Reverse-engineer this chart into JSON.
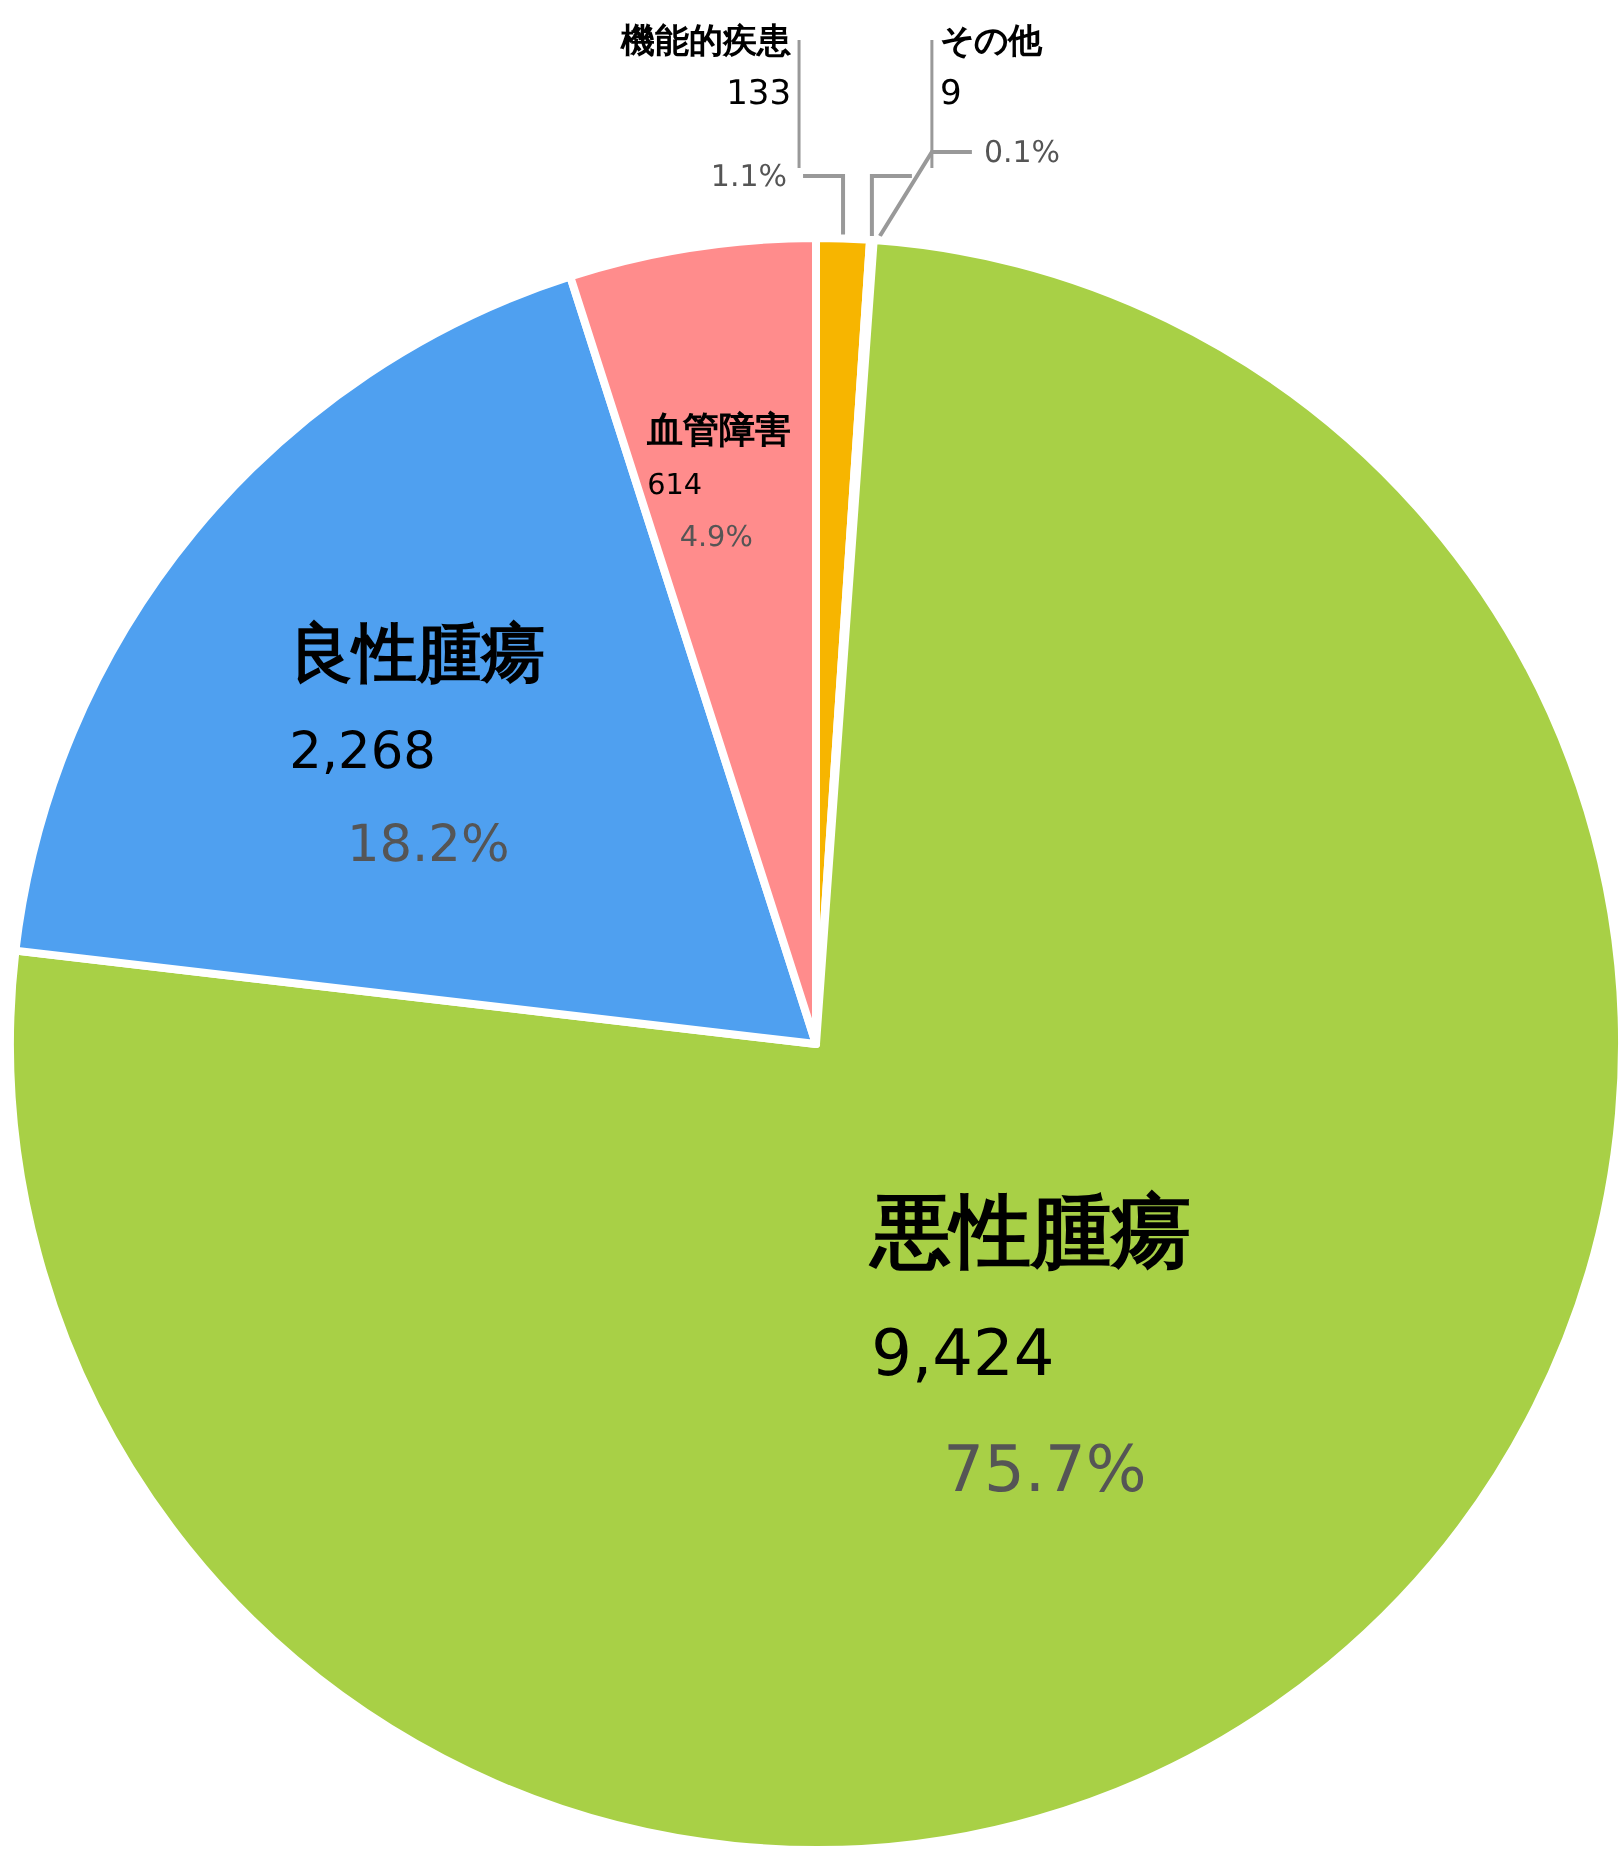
{
  "chart_data": {
    "type": "pie",
    "categories": [
      "機能的疾患",
      "その他",
      "悪性腫瘍",
      "良性腫瘍",
      "血管障害"
    ],
    "values": [
      133,
      9,
      9424,
      2268,
      614
    ],
    "colors": [
      "#f7b500",
      "#f29a1f",
      "#a8d046",
      "#4fa0f0",
      "#ff8c8c"
    ],
    "value_labels": [
      "133\n1.1%",
      "9\n0.1%",
      "9,424\n75.7%",
      "2,268\n18.2%",
      "614\n4.9%"
    ]
  }
}
